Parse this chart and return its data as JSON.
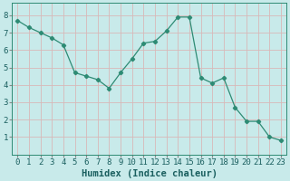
{
  "x": [
    0,
    1,
    2,
    3,
    4,
    5,
    6,
    7,
    8,
    9,
    10,
    11,
    12,
    13,
    14,
    15,
    16,
    17,
    18,
    19,
    20,
    21,
    22,
    23
  ],
  "y": [
    7.7,
    7.3,
    7.0,
    6.7,
    6.3,
    4.7,
    4.5,
    4.3,
    3.8,
    4.7,
    5.5,
    6.4,
    6.5,
    7.1,
    7.9,
    7.9,
    4.4,
    4.1,
    4.4,
    2.7,
    1.9,
    1.9,
    1.0,
    0.8
  ],
  "line_color": "#2e8b74",
  "marker": "D",
  "marker_size": 2.2,
  "bg_color": "#c8eaea",
  "grid_color": "#d8b8b8",
  "xlabel": "Humidex (Indice chaleur)",
  "xlabel_fontsize": 7.5,
  "tick_fontsize": 6.5,
  "xlim": [
    -0.5,
    23.5
  ],
  "ylim": [
    0,
    8.7
  ],
  "yticks": [
    1,
    2,
    3,
    4,
    5,
    6,
    7,
    8
  ],
  "xticks": [
    0,
    1,
    2,
    3,
    4,
    5,
    6,
    7,
    8,
    9,
    10,
    11,
    12,
    13,
    14,
    15,
    16,
    17,
    18,
    19,
    20,
    21,
    22,
    23
  ]
}
